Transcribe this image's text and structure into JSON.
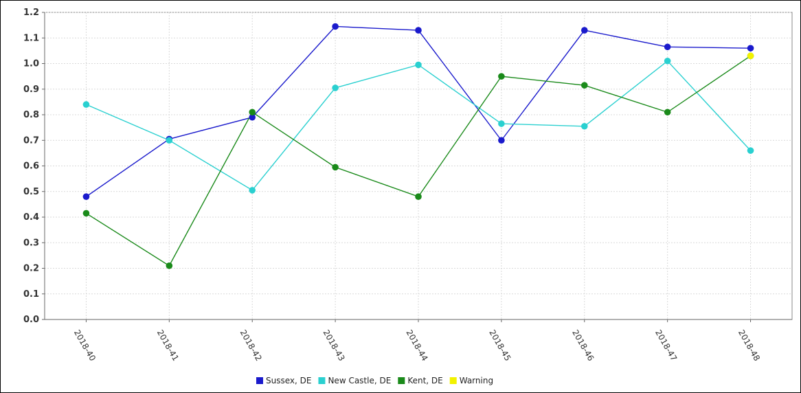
{
  "chart_data": {
    "type": "line",
    "title": "",
    "xlabel": "",
    "ylabel": "",
    "categories": [
      "2018-40",
      "2018-41",
      "2018-42",
      "2018-43",
      "2018-44",
      "2018-45",
      "2018-46",
      "2018-47",
      "2018-48"
    ],
    "ylim": [
      0,
      1.2
    ],
    "yticks": [
      0.0,
      0.1,
      0.2,
      0.3,
      0.4,
      0.5,
      0.6,
      0.7,
      0.8,
      0.9,
      1.0,
      1.1,
      1.2
    ],
    "grid": true,
    "legend_position": "bottom",
    "series": [
      {
        "name": "Sussex, DE",
        "color": "#1a1acc",
        "values": [
          0.48,
          0.705,
          0.79,
          1.145,
          1.13,
          0.7,
          1.13,
          1.065,
          1.06
        ]
      },
      {
        "name": "New Castle, DE",
        "color": "#2ad0d0",
        "values": [
          0.84,
          0.7,
          0.505,
          0.905,
          0.995,
          0.765,
          0.755,
          1.01,
          0.66
        ]
      },
      {
        "name": "Kent, DE",
        "color": "#1a8a1a",
        "values": [
          0.415,
          0.21,
          0.81,
          0.595,
          0.48,
          0.95,
          0.915,
          0.81,
          1.03
        ]
      }
    ],
    "warning": {
      "name": "Warning",
      "color": "#f2f200",
      "category_index": 8,
      "value": 1.03
    },
    "legend": [
      "Sussex, DE",
      "New Castle, DE",
      "Kent, DE",
      "Warning"
    ]
  }
}
